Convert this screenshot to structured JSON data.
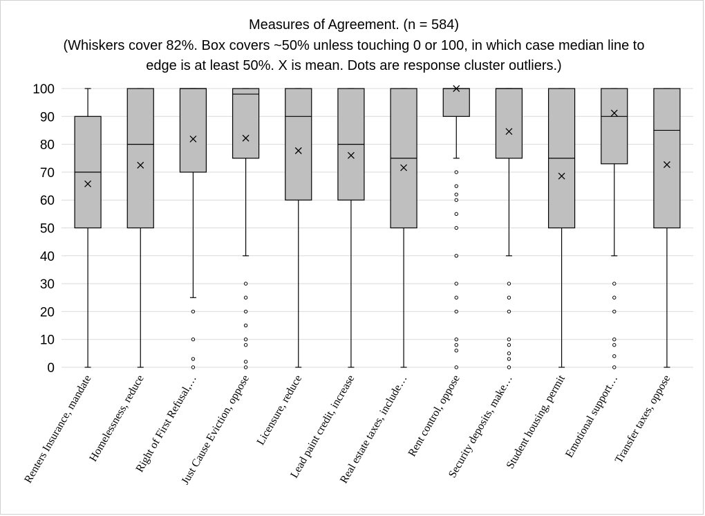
{
  "chart_data": {
    "type": "boxplot",
    "title_lines": [
      "Measures of Agreement. (n = 584)",
      "(Whiskers cover 82%. Box covers ~50% unless touching 0 or 100, in which case median line to",
      "edge is at least 50%. X is mean. Dots are response cluster outliers.)"
    ],
    "ylim": [
      0,
      100
    ],
    "yticks": [
      0,
      10,
      20,
      30,
      40,
      50,
      60,
      70,
      80,
      90,
      100
    ],
    "grid": true,
    "colors": {
      "box_fill": "#bfbfbf",
      "stroke": "#000000",
      "grid": "#d9d9d9"
    },
    "categories": [
      "Renters Insurance, mandate",
      "Homelessness, reduce",
      "Right of First Refusal,…",
      "Just Cause Eviction, oppose",
      "Licensure, reduce",
      "Lead paint credit, increase",
      "Real estate taxes, include…",
      "Rent control, oppose",
      "Security deposits, make…",
      "Student housing, permit",
      "Emotional support…",
      "Transfer taxes, oppose"
    ],
    "boxes": [
      {
        "whisker_low": 0,
        "q1": 50,
        "median": 70,
        "q3": 90,
        "whisker_high": 100,
        "mean": 65.8,
        "outliers": []
      },
      {
        "whisker_low": 0,
        "q1": 50,
        "median": 80,
        "q3": 100,
        "whisker_high": 100,
        "mean": 72.5,
        "outliers": []
      },
      {
        "whisker_low": 25,
        "q1": 70,
        "median": 100,
        "q3": 100,
        "whisker_high": 100,
        "mean": 81.9,
        "outliers": [
          20,
          10,
          3,
          0
        ]
      },
      {
        "whisker_low": 40,
        "q1": 75,
        "median": 98,
        "q3": 100,
        "whisker_high": 100,
        "mean": 82.2,
        "outliers": [
          30,
          25,
          20,
          15,
          10,
          8,
          2,
          0
        ]
      },
      {
        "whisker_low": 0,
        "q1": 60,
        "median": 90,
        "q3": 100,
        "whisker_high": 100,
        "mean": 77.7,
        "outliers": []
      },
      {
        "whisker_low": 0,
        "q1": 60,
        "median": 80,
        "q3": 100,
        "whisker_high": 100,
        "mean": 76.0,
        "outliers": []
      },
      {
        "whisker_low": 0,
        "q1": 50,
        "median": 75,
        "q3": 100,
        "whisker_high": 100,
        "mean": 71.6,
        "outliers": []
      },
      {
        "whisker_low": 75,
        "q1": 90,
        "median": 100,
        "q3": 100,
        "whisker_high": 100,
        "mean": 100,
        "outliers": [
          70,
          65,
          62,
          60,
          55,
          50,
          40,
          30,
          25,
          20,
          10,
          8,
          6,
          0
        ]
      },
      {
        "whisker_low": 40,
        "q1": 75,
        "median": 100,
        "q3": 100,
        "whisker_high": 100,
        "mean": 84.6,
        "outliers": [
          30,
          25,
          20,
          10,
          8,
          5,
          3,
          0
        ]
      },
      {
        "whisker_low": 0,
        "q1": 50,
        "median": 75,
        "q3": 100,
        "whisker_high": 100,
        "mean": 68.6,
        "outliers": []
      },
      {
        "whisker_low": 40,
        "q1": 73,
        "median": 90,
        "q3": 100,
        "whisker_high": 100,
        "mean": 91.2,
        "outliers": [
          30,
          25,
          20,
          10,
          8,
          4,
          0
        ]
      },
      {
        "whisker_low": 0,
        "q1": 50,
        "median": 85,
        "q3": 100,
        "whisker_high": 100,
        "mean": 72.7,
        "outliers": []
      }
    ]
  }
}
